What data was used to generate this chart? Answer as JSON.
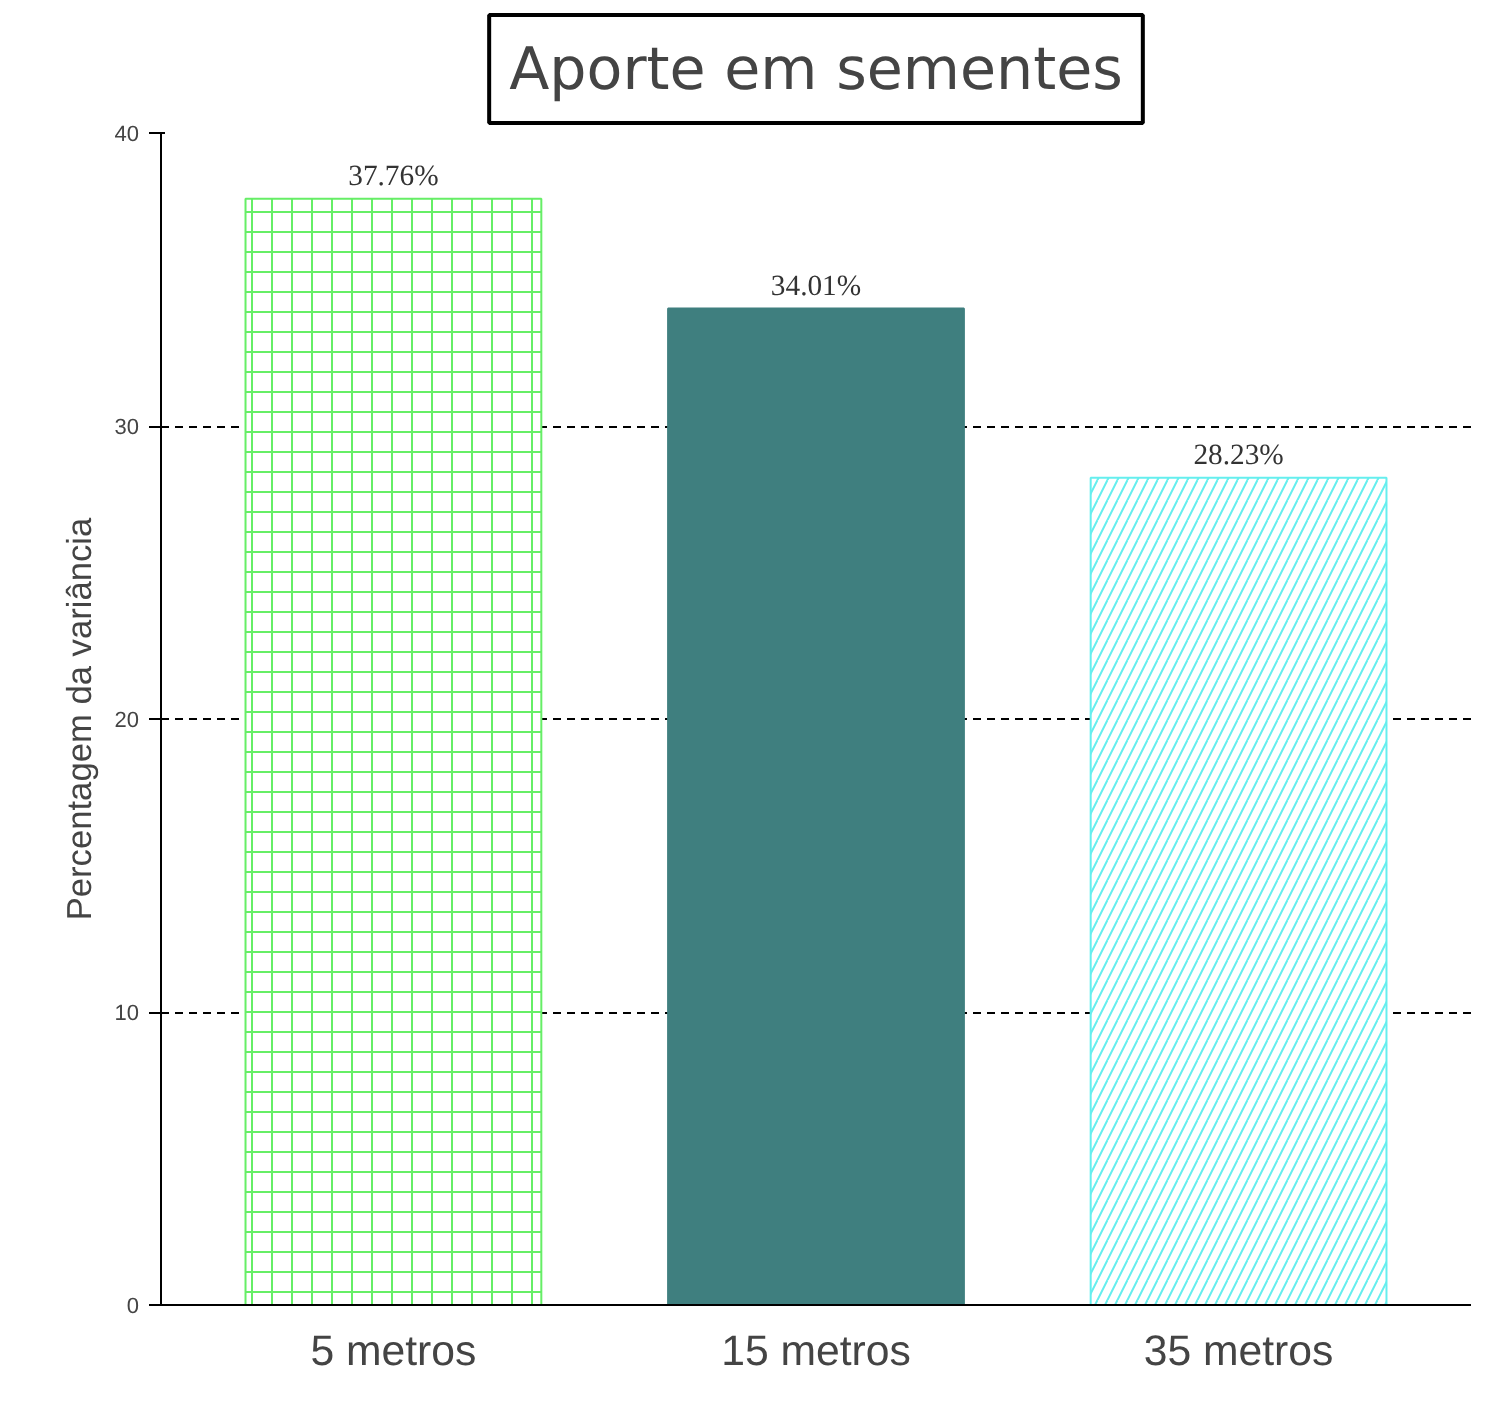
{
  "chart_data": {
    "type": "bar",
    "title": "Aporte em sementes",
    "ylabel": "Percentagem da variância",
    "categories": [
      "5 metros",
      "15 metros",
      "35 metros"
    ],
    "values": [
      37.76,
      34.01,
      28.23
    ],
    "colors": [
      "#66ee66",
      "#3f7f7f",
      "#66eeee"
    ],
    "value_labels": [
      "37.76%",
      "34.01%",
      "28.23%"
    ],
    "ylim": [
      0,
      40
    ],
    "yticks": [
      0,
      10,
      20,
      30,
      40
    ],
    "grid": "y"
  }
}
